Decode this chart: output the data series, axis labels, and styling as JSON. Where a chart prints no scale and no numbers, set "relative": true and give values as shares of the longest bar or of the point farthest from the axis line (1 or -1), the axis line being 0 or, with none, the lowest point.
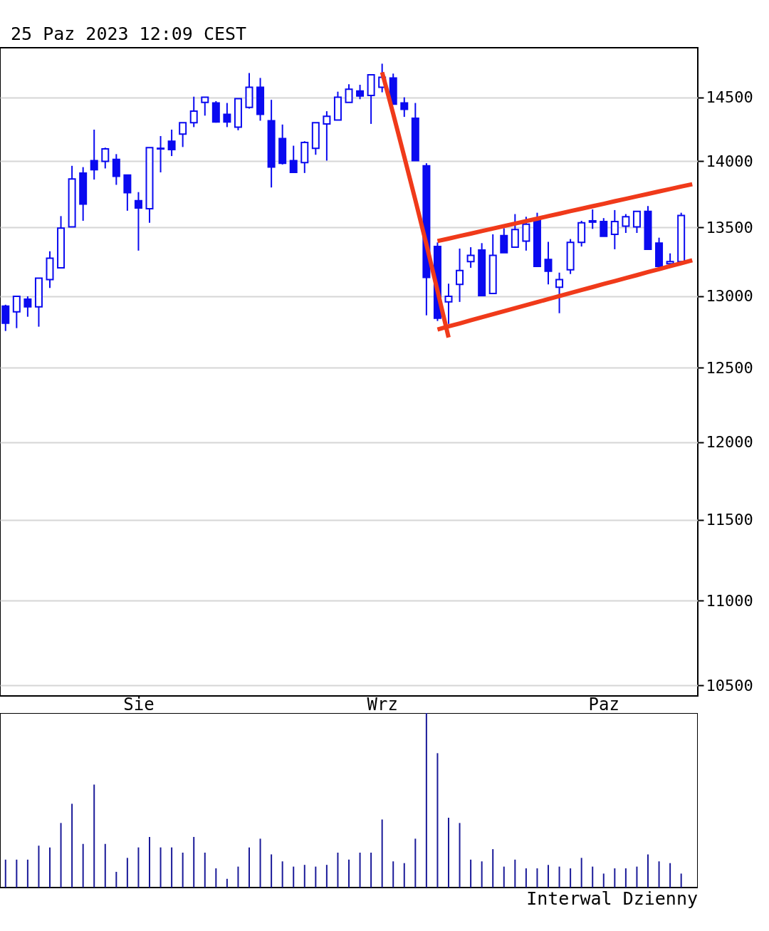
{
  "chart_data": [
    {
      "type": "candlestick",
      "title": "25 Paz 2023 12:09 CEST",
      "categories": [
        null,
        null,
        null,
        null,
        null,
        null,
        null,
        null,
        null,
        null,
        null,
        null,
        "Sie",
        null,
        null,
        null,
        null,
        null,
        null,
        null,
        null,
        null,
        null,
        null,
        null,
        null,
        null,
        null,
        null,
        null,
        null,
        null,
        null,
        null,
        "Wrz",
        null,
        null,
        null,
        null,
        null,
        null,
        null,
        null,
        null,
        null,
        null,
        null,
        null,
        null,
        null,
        null,
        null,
        null,
        null,
        "Paz",
        null,
        null,
        null,
        null,
        null,
        null,
        null,
        null
      ],
      "ylim": [
        10440,
        14900
      ],
      "yticks": [
        10500,
        11000,
        11500,
        12000,
        12500,
        13000,
        13500,
        14000,
        14500
      ],
      "log": true,
      "grid": "y",
      "series": [
        {
          "color": "#0a0af0",
          "ohlc": [
            [
              12930,
              12940,
              12755,
              12810
            ],
            [
              12890,
              13000,
              12775,
              13000
            ],
            [
              12980,
              13000,
              12855,
              12925
            ],
            [
              12925,
              13130,
              12785,
              13130
            ],
            [
              13120,
              13325,
              13060,
              13275
            ],
            [
              13205,
              13585,
              13205,
              13495
            ],
            [
              13505,
              13965,
              13505,
              13865
            ],
            [
              13910,
              13955,
              13550,
              13675
            ],
            [
              14005,
              14245,
              13860,
              13935
            ],
            [
              14000,
              14105,
              13945,
              14095
            ],
            [
              14015,
              14055,
              13820,
              13885
            ],
            [
              13895,
              13895,
              13625,
              13760
            ],
            [
              13700,
              13765,
              13330,
              13645
            ],
            [
              13640,
              14105,
              13535,
              14105
            ],
            [
              14095,
              14195,
              13915,
              14100
            ],
            [
              14155,
              14245,
              14040,
              14090
            ],
            [
              14210,
              14300,
              14110,
              14300
            ],
            [
              14300,
              14505,
              14265,
              14390
            ],
            [
              14460,
              14500,
              14355,
              14500
            ],
            [
              14455,
              14470,
              14300,
              14305
            ],
            [
              14365,
              14455,
              14265,
              14305
            ],
            [
              14265,
              14490,
              14240,
              14490
            ],
            [
              14420,
              14695,
              14410,
              14580
            ],
            [
              14580,
              14655,
              14315,
              14365
            ],
            [
              14315,
              14480,
              13800,
              13955
            ],
            [
              14175,
              14285,
              13975,
              13985
            ],
            [
              14005,
              14120,
              13915,
              13915
            ],
            [
              13990,
              14155,
              13910,
              14145
            ],
            [
              14100,
              14300,
              14050,
              14300
            ],
            [
              14290,
              14390,
              14005,
              14350
            ],
            [
              14320,
              14545,
              14320,
              14500
            ],
            [
              14460,
              14605,
              14460,
              14565
            ],
            [
              14550,
              14600,
              14485,
              14510
            ],
            [
              14515,
              14680,
              14290,
              14680
            ],
            [
              14580,
              14770,
              14540,
              14660
            ],
            [
              14655,
              14690,
              14445,
              14445
            ],
            [
              14455,
              14500,
              14345,
              14405
            ],
            [
              14335,
              14455,
              14005,
              14005
            ],
            [
              13965,
              13985,
              12865,
              13135
            ],
            [
              13360,
              13390,
              12825,
              12845
            ],
            [
              12960,
              13090,
              12805,
              13000
            ],
            [
              13085,
              13345,
              12960,
              13185
            ],
            [
              13250,
              13355,
              13205,
              13295
            ],
            [
              13335,
              13385,
              13005,
              13005
            ],
            [
              13020,
              13450,
              13020,
              13295
            ],
            [
              13440,
              13495,
              13315,
              13315
            ],
            [
              13355,
              13600,
              13355,
              13485
            ],
            [
              13400,
              13580,
              13330,
              13525
            ],
            [
              13555,
              13610,
              13215,
              13215
            ],
            [
              13265,
              13395,
              13085,
              13180
            ],
            [
              13065,
              13170,
              12880,
              13120
            ],
            [
              13190,
              13415,
              13160,
              13390
            ],
            [
              13390,
              13550,
              13360,
              13535
            ],
            [
              13540,
              13635,
              13490,
              13550
            ],
            [
              13545,
              13570,
              13435,
              13435
            ],
            [
              13450,
              13630,
              13340,
              13545
            ],
            [
              13510,
              13600,
              13460,
              13580
            ],
            [
              13505,
              13620,
              13460,
              13620
            ],
            [
              13620,
              13660,
              13340,
              13340
            ],
            [
              13385,
              13425,
              13215,
              13215
            ],
            [
              13235,
              13310,
              13235,
              13250
            ],
            [
              13250,
              13610,
              13250,
              13590
            ],
            null
          ]
        },
        {
          "type": "line",
          "color": "#f03a1a",
          "values": [
            null,
            null,
            null,
            null,
            null,
            null,
            null,
            null,
            null,
            null,
            null,
            null,
            null,
            null,
            null,
            null,
            null,
            null,
            null,
            null,
            null,
            null,
            null,
            null,
            null,
            null,
            null,
            null,
            null,
            null,
            null,
            null,
            null,
            null,
            14700,
            14370,
            14035,
            13705,
            13375,
            13040,
            12710,
            null,
            null,
            null,
            null,
            null,
            null,
            null,
            null,
            null,
            null,
            null,
            null,
            null,
            null,
            null,
            null,
            null,
            null,
            null,
            null,
            null,
            null
          ]
        },
        {
          "type": "line",
          "color": "#f03a1a",
          "values": [
            null,
            null,
            null,
            null,
            null,
            null,
            null,
            null,
            null,
            null,
            null,
            null,
            null,
            null,
            null,
            null,
            null,
            null,
            null,
            null,
            null,
            null,
            null,
            null,
            null,
            null,
            null,
            null,
            null,
            null,
            null,
            null,
            null,
            null,
            null,
            null,
            null,
            null,
            null,
            13400,
            13418,
            13437,
            13455,
            13474,
            13492,
            13511,
            13529,
            13548,
            13566,
            13585,
            13603,
            13622,
            13640,
            13659,
            13677,
            13696,
            13714,
            13733,
            13751,
            13770,
            13788,
            13807,
            13825
          ]
        },
        {
          "type": "line",
          "color": "#f03a1a",
          "values": [
            null,
            null,
            null,
            null,
            null,
            null,
            null,
            null,
            null,
            null,
            null,
            null,
            null,
            null,
            null,
            null,
            null,
            null,
            null,
            null,
            null,
            null,
            null,
            null,
            null,
            null,
            null,
            null,
            null,
            null,
            null,
            null,
            null,
            null,
            null,
            null,
            null,
            null,
            null,
            12765,
            12787,
            12808,
            12830,
            12851,
            12873,
            12894,
            12916,
            12937,
            12959,
            12980,
            13002,
            13023,
            13045,
            13066,
            13088,
            13109,
            13131,
            13152,
            13174,
            13195,
            13217,
            13238,
            13260
          ]
        }
      ],
      "line_style": "solid"
    },
    {
      "type": "bar",
      "relative": true,
      "color": "#1a1a99",
      "annotations": [
        "Interwal Dzienny"
      ],
      "tick_labels": false,
      "categories": [
        null,
        null,
        null,
        null,
        null,
        null,
        null,
        null,
        null,
        null,
        null,
        null,
        null,
        null,
        null,
        null,
        null,
        null,
        null,
        null,
        null,
        null,
        null,
        null,
        null,
        null,
        null,
        null,
        null,
        null,
        null,
        null,
        null,
        null,
        null,
        null,
        null,
        null,
        null,
        null,
        null,
        null,
        null,
        null,
        null,
        null,
        null,
        null,
        null,
        null,
        null,
        null,
        null,
        null,
        null,
        null,
        null,
        null,
        null,
        null,
        null,
        null,
        null
      ],
      "values": [
        0.16,
        0.16,
        0.16,
        0.24,
        0.23,
        0.37,
        0.48,
        0.25,
        0.59,
        0.25,
        0.09,
        0.17,
        0.23,
        0.29,
        0.23,
        0.23,
        0.2,
        0.29,
        0.2,
        0.11,
        0.05,
        0.12,
        0.23,
        0.28,
        0.19,
        0.15,
        0.12,
        0.13,
        0.12,
        0.13,
        0.2,
        0.16,
        0.2,
        0.2,
        0.39,
        0.15,
        0.14,
        0.28,
        1,
        0.77,
        0.4,
        0.37,
        0.16,
        0.15,
        0.22,
        0.12,
        0.16,
        0.11,
        0.11,
        0.13,
        0.12,
        0.11,
        0.17,
        0.12,
        0.08,
        0.11,
        0.11,
        0.12,
        0.19,
        0.15,
        0.14,
        0.08,
        null
      ]
    }
  ]
}
